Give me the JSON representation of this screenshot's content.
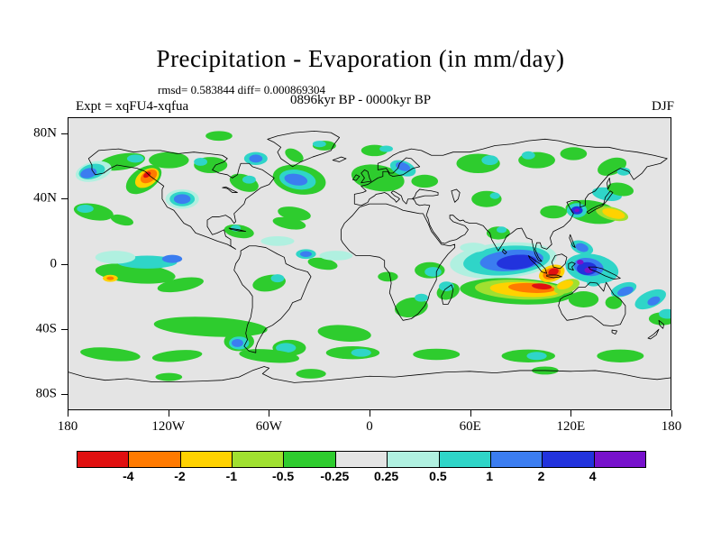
{
  "header": {
    "title": "Precipitation - Evaporation (in mm/day)",
    "stats": "rmsd= 0.583844  diff= 0.000869304",
    "period": "0896kyr BP - 0000kyr BP",
    "experiment": "Expt = xqFU4-xqfua",
    "season": "DJF"
  },
  "chart_data": {
    "type": "heatmap",
    "subtype": "filled-contour-world-map",
    "title": "Precipitation - Evaporation (in mm/day)",
    "units": "mm/day",
    "period": "0896kyr BP - 0000kyr BP",
    "experiment": "xqFU4-xqfua",
    "season": "DJF",
    "rmsd": 0.583844,
    "diff": 0.000869304,
    "x_axis": {
      "label_type": "longitude",
      "ticks": [
        "180",
        "120W",
        "60W",
        "0",
        "60E",
        "120E",
        "180"
      ],
      "values": [
        -180,
        -120,
        -60,
        0,
        60,
        120,
        180
      ]
    },
    "y_axis": {
      "label_type": "latitude",
      "ticks": [
        "80N",
        "40N",
        "0",
        "40S",
        "80S"
      ],
      "values": [
        80,
        40,
        0,
        -40,
        -80
      ]
    },
    "map_background": "#e4e4e4",
    "colorbar": {
      "levels": [
        "-4",
        "-2",
        "-1",
        "-0.5",
        "-0.25",
        "0.25",
        "0.5",
        "1",
        "2",
        "4"
      ],
      "colors": [
        "#e01010",
        "#ff7a00",
        "#ffd200",
        "#a0e030",
        "#2ecc2e",
        "#e4e4e4",
        "#b0f0e0",
        "#2fd5c8",
        "#3b7df0",
        "#2233dd",
        "#7711cc"
      ]
    },
    "features_format": [
      "lon",
      "lat",
      "rx_deg",
      "ry_deg",
      "rotation_deg",
      "color_index"
    ],
    "features": [
      [
        -148,
        63,
        14,
        5,
        -10,
        4
      ],
      [
        -120,
        64,
        12,
        5,
        0,
        4
      ],
      [
        -95,
        61,
        10,
        5,
        0,
        4
      ],
      [
        -90,
        79,
        8,
        3,
        0,
        4
      ],
      [
        -140,
        65,
        5,
        2.5,
        0,
        7
      ],
      [
        -101,
        63,
        4,
        2.5,
        0,
        7
      ],
      [
        -165,
        57,
        11,
        6,
        -15,
        6
      ],
      [
        -166,
        57,
        8,
        4.5,
        -15,
        7
      ],
      [
        -168,
        56,
        5,
        3,
        -15,
        8
      ],
      [
        -135,
        52,
        12,
        7,
        -35,
        4
      ],
      [
        -133,
        53,
        8,
        5,
        -35,
        2
      ],
      [
        -132,
        54,
        5.5,
        3.5,
        -35,
        1
      ],
      [
        -133,
        55,
        2.5,
        1.5,
        -35,
        0
      ],
      [
        -112,
        40,
        10,
        6,
        0,
        6
      ],
      [
        -112,
        40,
        7.5,
        4.5,
        0,
        7
      ],
      [
        -112,
        40,
        5,
        3,
        0,
        8
      ],
      [
        -75,
        50,
        9,
        5,
        20,
        4
      ],
      [
        -72,
        52,
        4,
        2.5,
        0,
        7
      ],
      [
        -68,
        65,
        7,
        4,
        0,
        7
      ],
      [
        -68,
        65,
        4,
        2.5,
        0,
        8
      ],
      [
        -45,
        67,
        6,
        3.5,
        30,
        4
      ],
      [
        -27,
        73,
        7,
        3,
        0,
        4
      ],
      [
        -30,
        74,
        4,
        2,
        0,
        7
      ],
      [
        -42,
        52,
        16,
        9,
        10,
        4
      ],
      [
        -43,
        52,
        11,
        6,
        10,
        7
      ],
      [
        -44,
        52,
        7,
        3.5,
        10,
        8
      ],
      [
        -45,
        31,
        10,
        4,
        10,
        4
      ],
      [
        -48,
        25,
        10,
        3.5,
        10,
        4
      ],
      [
        5,
        53,
        16,
        8,
        10,
        4
      ],
      [
        20,
        59,
        8,
        4.5,
        20,
        7
      ],
      [
        20,
        60,
        4.5,
        2.5,
        20,
        8
      ],
      [
        33,
        51,
        8,
        4,
        0,
        4
      ],
      [
        3,
        70,
        8,
        3.5,
        0,
        4
      ],
      [
        10,
        71,
        4,
        2,
        0,
        7
      ],
      [
        65,
        62,
        13,
        6,
        0,
        4
      ],
      [
        72,
        64,
        5,
        3,
        0,
        7
      ],
      [
        100,
        64,
        11,
        5,
        0,
        4
      ],
      [
        95,
        67,
        4,
        2.5,
        0,
        7
      ],
      [
        122,
        68,
        8,
        4,
        0,
        4
      ],
      [
        145,
        60,
        9,
        5,
        -20,
        4
      ],
      [
        152,
        57,
        4,
        2.5,
        0,
        7
      ],
      [
        70,
        40,
        9,
        5,
        0,
        4
      ],
      [
        75,
        42,
        3,
        2,
        0,
        7
      ],
      [
        -165,
        32,
        12,
        5,
        10,
        4
      ],
      [
        -170,
        34,
        5,
        2.5,
        0,
        7
      ],
      [
        -148,
        27,
        7,
        3,
        15,
        4
      ],
      [
        133,
        32,
        16,
        7,
        10,
        4
      ],
      [
        110,
        32,
        8,
        4,
        0,
        4
      ],
      [
        145,
        31,
        10,
        4,
        15,
        3
      ],
      [
        146,
        31,
        7,
        2.8,
        15,
        2
      ],
      [
        124,
        33,
        6,
        4.5,
        0,
        7
      ],
      [
        124,
        33,
        3.5,
        2.5,
        0,
        9
      ],
      [
        124,
        33,
        1.5,
        1.1,
        0,
        10
      ],
      [
        142,
        43,
        9,
        4,
        10,
        7
      ],
      [
        150,
        46,
        8,
        4,
        10,
        4
      ],
      [
        -140,
        -6,
        24,
        6,
        5,
        4
      ],
      [
        -133,
        1,
        18,
        4,
        0,
        7
      ],
      [
        -152,
        4,
        12,
        4,
        0,
        6
      ],
      [
        -118,
        3,
        6,
        2.5,
        0,
        8
      ],
      [
        -155,
        -9,
        4.5,
        2.2,
        0,
        2
      ],
      [
        -155,
        -9,
        2.2,
        1.1,
        0,
        1
      ],
      [
        -113,
        -13,
        14,
        4,
        -10,
        4
      ],
      [
        -28,
        0,
        9,
        3.5,
        10,
        4
      ],
      [
        -20,
        5,
        10,
        3,
        0,
        6
      ],
      [
        -38,
        6,
        6,
        3,
        0,
        7
      ],
      [
        -38,
        6,
        3.5,
        1.8,
        0,
        8
      ],
      [
        -60,
        -12,
        10,
        5,
        -10,
        4
      ],
      [
        -55,
        -9,
        4,
        2.5,
        0,
        7
      ],
      [
        -78,
        20,
        9,
        4,
        10,
        4
      ],
      [
        -80,
        22,
        3,
        2,
        0,
        7
      ],
      [
        -55,
        14,
        10,
        3,
        0,
        6
      ],
      [
        -95,
        -39,
        34,
        6,
        3,
        4
      ],
      [
        -78,
        -48,
        9,
        6,
        0,
        4
      ],
      [
        -78,
        -49,
        6,
        4,
        0,
        7
      ],
      [
        -79,
        -49,
        3.5,
        2.5,
        0,
        8
      ],
      [
        -48,
        -52,
        10,
        5,
        0,
        4
      ],
      [
        -50,
        -52,
        6,
        3,
        0,
        7
      ],
      [
        -15,
        -43,
        16,
        5,
        5,
        4
      ],
      [
        25,
        -27,
        10,
        6,
        -10,
        4
      ],
      [
        31,
        -21,
        4,
        2.5,
        0,
        7
      ],
      [
        11,
        -8,
        6,
        3,
        0,
        4
      ],
      [
        36,
        -4,
        9,
        5,
        0,
        4
      ],
      [
        38,
        -5,
        5,
        3,
        0,
        7
      ],
      [
        47,
        -17,
        7,
        5,
        -20,
        4
      ],
      [
        46,
        -14,
        4.5,
        3,
        0,
        7
      ],
      [
        80,
        2,
        32,
        11,
        -5,
        6
      ],
      [
        82,
        2,
        26,
        9,
        -5,
        7
      ],
      [
        85,
        2,
        19,
        6.5,
        -5,
        8
      ],
      [
        88,
        1,
        12,
        4.5,
        -5,
        9
      ],
      [
        77,
        19,
        7,
        4,
        0,
        4
      ],
      [
        79,
        21,
        3,
        2,
        0,
        7
      ],
      [
        62,
        10,
        8,
        3,
        0,
        6
      ],
      [
        88,
        -17,
        34,
        8,
        3,
        4
      ],
      [
        90,
        -16,
        27,
        6,
        3,
        3
      ],
      [
        93,
        -16,
        21,
        4.5,
        3,
        2
      ],
      [
        97,
        -15,
        14,
        3,
        3,
        1
      ],
      [
        103,
        -14,
        6,
        1.8,
        5,
        0
      ],
      [
        109,
        -6,
        8,
        5,
        -20,
        2
      ],
      [
        109,
        -6,
        5.5,
        3.5,
        -20,
        1
      ],
      [
        110,
        -5,
        3.2,
        2.2,
        -20,
        0
      ],
      [
        133,
        -3,
        16,
        9,
        10,
        7
      ],
      [
        131,
        -2,
        9,
        5.5,
        10,
        8
      ],
      [
        130,
        -3,
        6,
        4,
        0,
        9
      ],
      [
        131,
        -4,
        2.5,
        1.8,
        0,
        10
      ],
      [
        126,
        1,
        2,
        1.5,
        0,
        10
      ],
      [
        127,
        10,
        7,
        4,
        20,
        7
      ],
      [
        127,
        10,
        4,
        2.5,
        20,
        8
      ],
      [
        152,
        -16,
        8,
        4,
        -20,
        7
      ],
      [
        153,
        -17,
        5,
        2.5,
        -20,
        8
      ],
      [
        168,
        -22,
        10,
        5,
        -25,
        7
      ],
      [
        170,
        -23,
        4,
        2.5,
        -25,
        8
      ],
      [
        175,
        -34,
        8,
        4,
        0,
        4
      ],
      [
        178,
        -31,
        5,
        3,
        0,
        7
      ],
      [
        118,
        -14,
        8,
        4,
        -20,
        3
      ],
      [
        117,
        -13,
        5,
        2.5,
        -20,
        2
      ],
      [
        128,
        -22,
        9,
        5,
        0,
        4
      ],
      [
        134,
        -12,
        4,
        2,
        0,
        7
      ],
      [
        146,
        -24,
        5,
        4,
        0,
        4
      ],
      [
        -155,
        -56,
        18,
        4,
        5,
        4
      ],
      [
        -115,
        -57,
        15,
        3.5,
        -5,
        4
      ],
      [
        -60,
        -57,
        18,
        4,
        5,
        4
      ],
      [
        -10,
        -55,
        16,
        4,
        0,
        4
      ],
      [
        -5,
        -55,
        6,
        2.5,
        0,
        7
      ],
      [
        40,
        -56,
        14,
        3.5,
        0,
        4
      ],
      [
        95,
        -57,
        16,
        4,
        0,
        4
      ],
      [
        100,
        -57,
        6,
        2.5,
        0,
        7
      ],
      [
        150,
        -57,
        14,
        4,
        0,
        4
      ],
      [
        -35,
        -68,
        9,
        3,
        0,
        4
      ],
      [
        105,
        -66,
        8,
        2.5,
        0,
        4
      ],
      [
        -120,
        -70,
        8,
        2.5,
        0,
        4
      ]
    ]
  }
}
